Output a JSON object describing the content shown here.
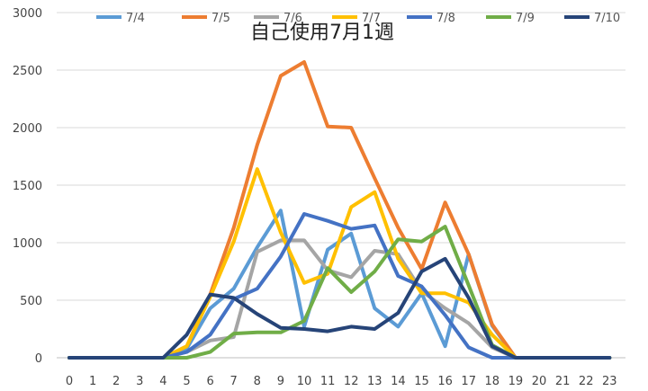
{
  "chart_data": {
    "type": "line",
    "title": "自己使用7月1週",
    "xlabel": "",
    "ylabel": "",
    "x": [
      0,
      1,
      2,
      3,
      4,
      5,
      6,
      7,
      8,
      9,
      10,
      11,
      12,
      13,
      14,
      15,
      16,
      17,
      18,
      19,
      20,
      21,
      22,
      23
    ],
    "ylim": [
      0,
      3000
    ],
    "yticks": [
      0,
      500,
      1000,
      1500,
      2000,
      2500,
      3000
    ],
    "grid": true,
    "legend_position": "top",
    "series": [
      {
        "name": "7/4",
        "color": "#5b9bd5",
        "values": [
          0,
          0,
          0,
          0,
          0,
          80,
          430,
          600,
          960,
          1280,
          270,
          940,
          1080,
          430,
          270,
          560,
          100,
          900,
          280,
          0,
          0,
          0,
          0,
          0
        ]
      },
      {
        "name": "7/5",
        "color": "#ed7d31",
        "values": [
          0,
          0,
          0,
          0,
          0,
          100,
          550,
          1130,
          1850,
          2450,
          2570,
          2010,
          2000,
          1560,
          1130,
          770,
          1350,
          900,
          290,
          0,
          0,
          0,
          0,
          0
        ]
      },
      {
        "name": "7/6",
        "color": "#a5a5a5",
        "values": [
          0,
          0,
          0,
          0,
          0,
          50,
          150,
          180,
          920,
          1020,
          1020,
          760,
          700,
          930,
          900,
          580,
          430,
          300,
          90,
          0,
          0,
          0,
          0,
          0
        ]
      },
      {
        "name": "7/7",
        "color": "#ffc000",
        "values": [
          0,
          0,
          0,
          0,
          0,
          100,
          530,
          1010,
          1640,
          1090,
          650,
          730,
          1310,
          1440,
          860,
          560,
          560,
          480,
          200,
          0,
          0,
          0,
          0,
          0
        ]
      },
      {
        "name": "7/8",
        "color": "#4472c4",
        "values": [
          0,
          0,
          0,
          0,
          0,
          50,
          200,
          510,
          600,
          880,
          1250,
          1190,
          1120,
          1150,
          710,
          620,
          370,
          90,
          0,
          0,
          0,
          0,
          0,
          0
        ]
      },
      {
        "name": "7/9",
        "color": "#70ad47",
        "values": [
          0,
          0,
          0,
          0,
          0,
          0,
          50,
          210,
          220,
          220,
          320,
          780,
          570,
          750,
          1030,
          1010,
          1140,
          630,
          110,
          0,
          0,
          0,
          0,
          0
        ]
      },
      {
        "name": "7/10",
        "color": "#264478",
        "values": [
          0,
          0,
          0,
          0,
          0,
          200,
          550,
          520,
          380,
          260,
          250,
          230,
          270,
          250,
          390,
          750,
          860,
          520,
          100,
          0,
          0,
          0,
          0,
          0
        ]
      }
    ]
  }
}
